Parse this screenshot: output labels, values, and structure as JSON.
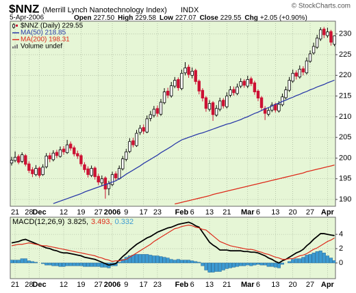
{
  "chart_data": [
    {
      "type": "candlestick",
      "title": "$NNZ",
      "subtitle": "(Merrill Lynch Nanotechnology Index)",
      "exchange": "INDX",
      "date": "5-Apr-2006",
      "copyright": "© StockCharts.com",
      "quote": [
        {
          "label": "Open",
          "value": "227.50"
        },
        {
          "label": "High",
          "value": "229.58"
        },
        {
          "label": "Low",
          "value": "227.07"
        },
        {
          "label": "Close",
          "value": "229.55"
        },
        {
          "label": "Chg",
          "value": "+2.05 (+0.90%)"
        }
      ],
      "price_label": "$NNZ (Daily) 229.55",
      "volume_label": "Volume undef",
      "background": "#e6f6d6",
      "grid": true,
      "up_color": "#000000",
      "down_color": "#cc1133",
      "categories": [
        null,
        "21",
        null,
        null,
        null,
        "28",
        null,
        null,
        "Dec",
        null,
        null,
        null,
        null,
        null,
        null,
        "12",
        null,
        null,
        null,
        null,
        "19",
        null,
        null,
        null,
        null,
        "27",
        null,
        null,
        null,
        "2006",
        null,
        null,
        null,
        "9",
        null,
        null,
        null,
        null,
        "17",
        null,
        null,
        null,
        "23",
        null,
        null,
        null,
        null,
        null,
        null,
        "Feb",
        null,
        null,
        "6",
        null,
        null,
        null,
        null,
        "13",
        null,
        null,
        null,
        null,
        "21",
        null,
        null,
        null,
        null,
        null,
        "Mar",
        null,
        null,
        "6",
        null,
        null,
        null,
        null,
        "13",
        null,
        null,
        null,
        null,
        "20",
        null,
        null,
        null,
        null,
        "27",
        null,
        null,
        null,
        null,
        "Apr",
        null,
        null
      ],
      "open": [
        198.8,
        199.4,
        200.4,
        199.2,
        200.6,
        198.6,
        197.2,
        196.0,
        197.6,
        196.0,
        197.9,
        200.6,
        199.6,
        201.4,
        200.4,
        202.2,
        201.3,
        203.4,
        202.5,
        201.1,
        200.6,
        198.4,
        197.4,
        195.8,
        197.6,
        195.6,
        194.0,
        195.2,
        192.6,
        193.6,
        196.2,
        195.0,
        197.4,
        199.7,
        201.6,
        204.2,
        203.0,
        206.2,
        207.4,
        206.3,
        209.6,
        210.3,
        212.0,
        210.6,
        213.4,
        216.2,
        215.0,
        217.4,
        219.0,
        216.8,
        220.6,
        222.0,
        220.0,
        221.2,
        218.6,
        216.4,
        214.6,
        211.8,
        213.4,
        210.4,
        211.8,
        214.0,
        212.4,
        215.2,
        216.6,
        215.6,
        217.4,
        218.6,
        217.4,
        219.2,
        218.2,
        216.2,
        214.6,
        212.0,
        210.6,
        211.6,
        213.0,
        211.4,
        212.9,
        214.6,
        216.4,
        218.6,
        220.6,
        219.6,
        221.6,
        220.6,
        223.4,
        225.4,
        226.8,
        228.8,
        231.2,
        229.6,
        230.6,
        227.5
      ],
      "high": [
        200.3,
        201.6,
        200.9,
        201.4,
        201.0,
        199.2,
        197.8,
        198.3,
        198.0,
        198.5,
        201.2,
        201.3,
        201.9,
        202.0,
        202.8,
        202.9,
        204.4,
        204.0,
        203.0,
        201.8,
        201.0,
        199.0,
        198.0,
        198.2,
        198.0,
        196.2,
        195.8,
        195.6,
        194.5,
        196.7,
        196.8,
        198.2,
        200.5,
        202.2,
        204.8,
        204.9,
        206.8,
        208.0,
        208.1,
        210.3,
        211.4,
        212.6,
        212.7,
        214.3,
        216.9,
        217.0,
        218.4,
        219.6,
        219.5,
        221.4,
        223.2,
        222.6,
        221.9,
        221.6,
        219.0,
        216.9,
        215.0,
        214.0,
        213.8,
        212.8,
        214.6,
        214.5,
        215.9,
        217.4,
        217.3,
        218.0,
        219.3,
        219.1,
        219.9,
        219.7,
        218.7,
        216.6,
        215.0,
        212.6,
        212.3,
        213.5,
        213.4,
        213.8,
        215.6,
        217.3,
        219.6,
        221.4,
        221.2,
        222.4,
        222.2,
        224.3,
        226.0,
        227.9,
        229.8,
        231.6,
        231.7,
        231.5,
        231.0,
        229.58
      ],
      "low": [
        198.2,
        199.0,
        198.5,
        198.8,
        198.0,
        196.4,
        195.4,
        195.6,
        195.2,
        195.7,
        197.5,
        199.0,
        199.2,
        200.0,
        200.1,
        200.8,
        201.0,
        201.8,
        200.4,
        199.8,
        198.0,
        196.5,
        195.3,
        195.4,
        194.8,
        193.5,
        193.2,
        190.2,
        191.0,
        193.2,
        194.6,
        194.8,
        197.0,
        199.2,
        201.2,
        202.6,
        202.7,
        205.6,
        205.8,
        206.0,
        208.9,
        209.8,
        210.0,
        210.2,
        213.0,
        214.5,
        214.6,
        216.9,
        216.3,
        216.4,
        220.0,
        219.4,
        219.3,
        217.8,
        215.4,
        213.7,
        211.2,
        211.3,
        209.0,
        210.0,
        211.3,
        212.0,
        212.0,
        214.7,
        215.1,
        215.2,
        216.9,
        217.0,
        216.9,
        217.4,
        215.3,
        213.8,
        211.5,
        209.2,
        210.1,
        211.1,
        211.0,
        211.0,
        212.5,
        214.2,
        216.0,
        218.2,
        219.0,
        219.2,
        220.0,
        220.2,
        223.0,
        225.0,
        226.4,
        228.3,
        229.0,
        229.1,
        227.2,
        227.07
      ],
      "close": [
        199.5,
        200.2,
        199.0,
        200.8,
        198.5,
        197.0,
        196.2,
        197.5,
        195.8,
        197.8,
        200.5,
        199.8,
        201.2,
        200.6,
        202.0,
        201.5,
        203.2,
        202.4,
        201.0,
        200.5,
        198.6,
        197.2,
        196.0,
        197.5,
        195.5,
        194.2,
        195.0,
        192.5,
        193.8,
        196.0,
        195.2,
        197.5,
        199.8,
        201.5,
        204.0,
        203.2,
        206.0,
        207.2,
        206.5,
        209.5,
        210.5,
        211.8,
        210.8,
        213.5,
        216.0,
        215.2,
        217.5,
        218.8,
        217.0,
        220.5,
        221.8,
        220.2,
        221.0,
        218.5,
        216.2,
        214.5,
        212.0,
        213.2,
        210.5,
        212.0,
        213.8,
        212.6,
        215.0,
        216.5,
        215.8,
        217.2,
        218.5,
        217.6,
        219.0,
        218.0,
        216.0,
        214.5,
        212.2,
        210.8,
        211.5,
        212.8,
        211.6,
        213.0,
        214.8,
        216.5,
        218.8,
        220.5,
        219.8,
        221.5,
        220.8,
        223.5,
        225.2,
        227.0,
        229.0,
        231.0,
        229.8,
        230.5,
        228.0,
        229.55
      ],
      "series": [
        {
          "name": "MA(50) 218.85",
          "color": "#2a3aa8",
          "values": [
            null,
            null,
            null,
            null,
            null,
            null,
            null,
            null,
            null,
            null,
            null,
            null,
            189.0,
            189.3,
            189.6,
            189.9,
            190.2,
            190.5,
            190.8,
            191.1,
            191.4,
            191.8,
            192.1,
            192.4,
            192.7,
            193.0,
            193.3,
            193.6,
            193.9,
            194.2,
            194.5,
            195.0,
            195.5,
            196.1,
            196.6,
            197.1,
            197.6,
            198.1,
            198.7,
            199.2,
            199.7,
            200.2,
            200.7,
            201.3,
            201.8,
            202.3,
            202.8,
            203.4,
            203.9,
            204.4,
            204.7,
            205.0,
            205.3,
            205.6,
            205.9,
            206.1,
            206.4,
            206.7,
            207.0,
            207.3,
            207.6,
            207.9,
            208.2,
            208.4,
            208.7,
            209.0,
            209.3,
            209.7,
            210.0,
            210.4,
            210.8,
            211.1,
            211.5,
            211.9,
            212.2,
            212.6,
            213.0,
            213.3,
            213.7,
            214.0,
            214.4,
            214.7,
            215.1,
            215.4,
            215.8,
            216.1,
            216.5,
            216.8,
            217.2,
            217.5,
            217.8,
            218.2,
            218.5,
            218.85
          ]
        },
        {
          "name": "MA(200) 198.31",
          "color": "#dd2a1a",
          "values": [
            null,
            null,
            null,
            null,
            null,
            null,
            null,
            null,
            null,
            null,
            null,
            null,
            null,
            null,
            null,
            null,
            null,
            null,
            null,
            null,
            null,
            null,
            null,
            null,
            null,
            null,
            null,
            null,
            null,
            null,
            null,
            null,
            null,
            null,
            null,
            null,
            null,
            null,
            null,
            null,
            null,
            null,
            null,
            null,
            null,
            null,
            null,
            188.9,
            189.1,
            189.3,
            189.5,
            189.7,
            189.9,
            190.1,
            190.3,
            190.5,
            190.7,
            190.9,
            191.2,
            191.4,
            191.6,
            191.8,
            192.0,
            192.2,
            192.4,
            192.6,
            192.8,
            193.0,
            193.2,
            193.4,
            193.6,
            193.8,
            194.0,
            194.2,
            194.4,
            194.6,
            194.8,
            195.0,
            195.2,
            195.4,
            195.6,
            195.8,
            196.0,
            196.2,
            196.4,
            196.7,
            196.9,
            197.1,
            197.3,
            197.5,
            197.7,
            197.9,
            198.1,
            198.31
          ]
        }
      ],
      "ylim": [
        188.35,
        233.1
      ],
      "yticks": [
        190,
        195,
        200,
        205,
        210,
        215,
        220,
        225,
        230
      ]
    },
    {
      "type": "macd",
      "title": "MACD(12,26,9)",
      "background": "#e6f6d6",
      "grid": true,
      "series": [
        {
          "name": "3.825,",
          "color": "#000000",
          "style": "line",
          "values": [
            2.8,
            2.9,
            3.0,
            3.2,
            3.3,
            3.1,
            2.9,
            2.7,
            2.5,
            2.3,
            2.1,
            2.0,
            1.8,
            1.7,
            1.5,
            1.4,
            1.4,
            1.3,
            1.2,
            1.1,
            1.0,
            0.8,
            0.7,
            0.6,
            0.5,
            0.3,
            0.1,
            -0.1,
            -0.3,
            -0.2,
            -0.1,
            0.4,
            0.9,
            1.3,
            1.8,
            2.2,
            2.6,
            2.9,
            3.2,
            3.5,
            3.7,
            4.0,
            4.3,
            4.5,
            4.7,
            4.9,
            5.0,
            5.2,
            5.4,
            5.5,
            5.6,
            5.7,
            5.5,
            5.2,
            5.0,
            4.3,
            3.6,
            2.9,
            2.5,
            2.2,
            1.8,
            1.8,
            1.8,
            1.7,
            1.7,
            1.7,
            1.7,
            1.6,
            1.6,
            1.5,
            1.5,
            1.4,
            1.2,
            1.0,
            0.7,
            0.5,
            0.2,
            0.0,
            0.3,
            0.5,
            0.8,
            1.1,
            1.4,
            1.6,
            1.9,
            2.4,
            2.8,
            3.3,
            3.7,
            4.1,
            4.1,
            4.0,
            3.9,
            3.825
          ]
        },
        {
          "name": "3.493,",
          "color": "#dd2a1a",
          "style": "line",
          "values": [
            2.4,
            2.5,
            2.6,
            2.6,
            2.7,
            2.8,
            2.7,
            2.6,
            2.5,
            2.4,
            2.4,
            2.3,
            2.2,
            2.1,
            2.0,
            1.9,
            1.8,
            1.7,
            1.6,
            1.5,
            1.4,
            1.3,
            1.2,
            1.1,
            1.0,
            0.8,
            0.7,
            0.5,
            0.4,
            0.2,
            0.3,
            0.3,
            0.4,
            0.5,
            0.8,
            1.1,
            1.4,
            1.7,
            2.0,
            2.3,
            2.6,
            3.0,
            3.3,
            3.6,
            3.9,
            4.2,
            4.5,
            4.8,
            4.9,
            5.1,
            5.2,
            5.3,
            5.2,
            5.0,
            4.9,
            4.7,
            4.6,
            4.2,
            3.8,
            3.4,
            3.0,
            2.8,
            2.6,
            2.4,
            2.3,
            2.2,
            2.1,
            2.0,
            1.9,
            1.9,
            1.8,
            1.6,
            1.5,
            1.3,
            1.2,
            1.0,
            0.8,
            0.7,
            0.5,
            0.5,
            0.6,
            0.6,
            0.8,
            1.0,
            1.1,
            1.3,
            1.6,
            1.9,
            2.1,
            2.4,
            2.7,
            3.0,
            3.2,
            3.493
          ]
        },
        {
          "name": "0.332",
          "color": "#3c9ad2",
          "style": "bar",
          "values": [
            0.4,
            0.4,
            0.4,
            0.6,
            0.6,
            0.3,
            0.2,
            0.1,
            0.0,
            -0.1,
            -0.3,
            -0.3,
            -0.4,
            -0.4,
            -0.5,
            -0.5,
            -0.4,
            -0.4,
            -0.4,
            -0.4,
            -0.4,
            -0.5,
            -0.5,
            -0.5,
            -0.5,
            -0.5,
            -0.6,
            -0.6,
            -0.7,
            -0.4,
            -0.4,
            0.1,
            0.5,
            0.8,
            1.0,
            1.1,
            1.2,
            1.2,
            1.2,
            1.2,
            1.1,
            1.0,
            1.0,
            0.9,
            0.8,
            0.7,
            0.5,
            0.4,
            0.5,
            0.4,
            0.4,
            0.4,
            0.3,
            0.2,
            0.1,
            -0.4,
            -1.0,
            -1.3,
            -1.3,
            -1.2,
            -1.2,
            -1.0,
            -0.8,
            -0.7,
            -0.6,
            -0.5,
            -0.4,
            -0.4,
            -0.3,
            -0.4,
            -0.3,
            -0.2,
            -0.3,
            -0.3,
            -0.5,
            -0.5,
            -0.6,
            -0.7,
            -0.2,
            0.0,
            0.2,
            0.5,
            0.6,
            0.6,
            0.8,
            1.1,
            1.2,
            1.4,
            1.6,
            1.7,
            1.4,
            1.0,
            0.7,
            0.332
          ]
        }
      ],
      "ylim": [
        -2.2,
        6.4
      ],
      "yticks": [
        0,
        2,
        4
      ]
    }
  ]
}
